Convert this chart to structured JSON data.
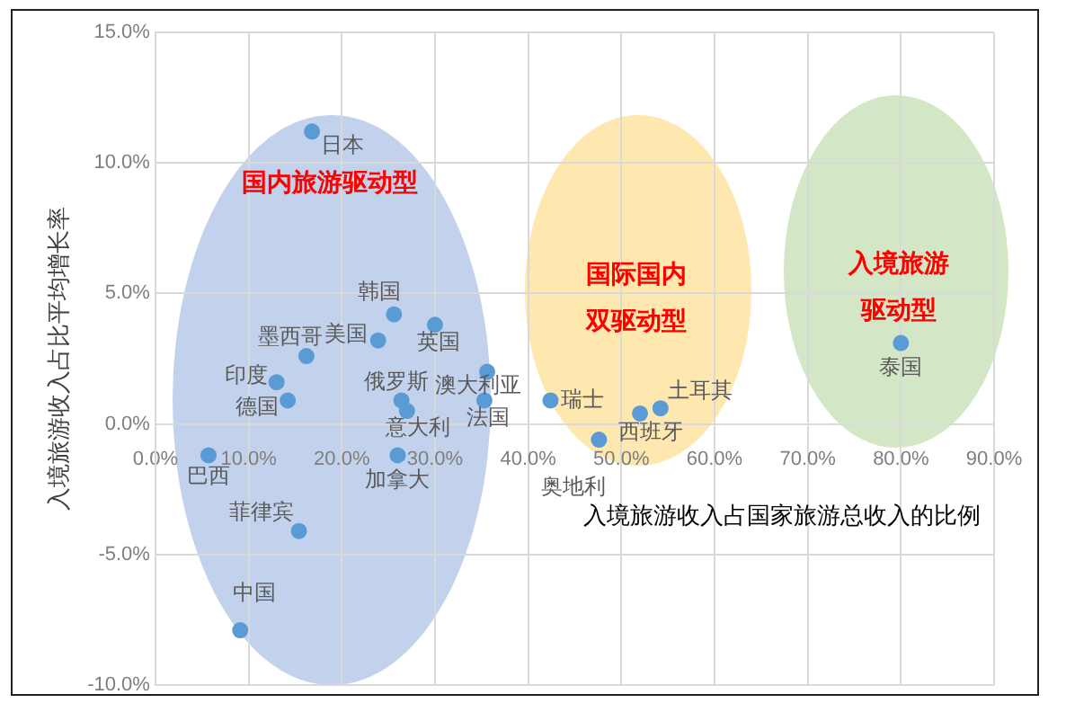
{
  "chart_data": {
    "type": "scatter",
    "ylabel": "入境旅游收入占比平均增长率",
    "xlabel": "入境旅游收入占国家旅游总收入的比例",
    "marker": "circle",
    "grid": true,
    "xlim": [
      0,
      90
    ],
    "ylim": [
      -10,
      15
    ],
    "xticks": [
      {
        "value": 0,
        "label": "0.0%"
      },
      {
        "value": 10,
        "label": "10.0%"
      },
      {
        "value": 20,
        "label": "20.0%"
      },
      {
        "value": 30,
        "label": "30.0%"
      },
      {
        "value": 40,
        "label": "40.0%"
      },
      {
        "value": 50,
        "label": "50.0%"
      },
      {
        "value": 60,
        "label": "60.0%"
      },
      {
        "value": 70,
        "label": "70.0%"
      },
      {
        "value": 80,
        "label": "80.0%"
      },
      {
        "value": 90,
        "label": "90.0%"
      }
    ],
    "yticks": [
      {
        "value": -10,
        "label": "-10.0%"
      },
      {
        "value": -5,
        "label": "-5.0%"
      },
      {
        "value": 0,
        "label": "0.0%"
      },
      {
        "value": 5,
        "label": "5.0%"
      },
      {
        "value": 10,
        "label": "10.0%"
      },
      {
        "value": 15,
        "label": "15.0%"
      }
    ],
    "annotations": [
      "国内旅游驱动型",
      "国际国内双驱动型",
      "入境旅游驱动型"
    ],
    "series": [
      {
        "name": "日本",
        "color": "#5b9bd5",
        "x": [
          16.8
        ],
        "values": [
          11.2
        ]
      },
      {
        "name": "韩国",
        "color": "#5b9bd5",
        "x": [
          25.6
        ],
        "values": [
          4.2
        ]
      },
      {
        "name": "美国",
        "color": "#5b9bd5",
        "x": [
          23.9
        ],
        "values": [
          3.2
        ]
      },
      {
        "name": "英国",
        "color": "#5b9bd5",
        "x": [
          30.0
        ],
        "values": [
          3.8
        ]
      },
      {
        "name": "墨西哥",
        "color": "#5b9bd5",
        "x": [
          16.2
        ],
        "values": [
          2.6
        ]
      },
      {
        "name": "印度",
        "color": "#5b9bd5",
        "x": [
          13.0
        ],
        "values": [
          1.6
        ]
      },
      {
        "name": "德国",
        "color": "#5b9bd5",
        "x": [
          14.2
        ],
        "values": [
          0.9
        ]
      },
      {
        "name": "俄罗斯",
        "color": "#5b9bd5",
        "x": [
          26.4
        ],
        "values": [
          0.9
        ]
      },
      {
        "name": "意大利",
        "color": "#5b9bd5",
        "x": [
          27.0
        ],
        "values": [
          0.5
        ]
      },
      {
        "name": "澳大利亚",
        "color": "#5b9bd5",
        "x": [
          35.6
        ],
        "values": [
          2.0
        ]
      },
      {
        "name": "法国",
        "color": "#5b9bd5",
        "x": [
          35.3
        ],
        "values": [
          0.9
        ]
      },
      {
        "name": "加拿大",
        "color": "#5b9bd5",
        "x": [
          26.0
        ],
        "values": [
          -1.2
        ]
      },
      {
        "name": "巴西",
        "color": "#5b9bd5",
        "x": [
          5.7
        ],
        "values": [
          -1.2
        ]
      },
      {
        "name": "菲律宾",
        "color": "#5b9bd5",
        "x": [
          15.4
        ],
        "values": [
          -4.1
        ]
      },
      {
        "name": "中国",
        "color": "#5b9bd5",
        "x": [
          9.1
        ],
        "values": [
          -7.9
        ]
      },
      {
        "name": "瑞士",
        "color": "#5b9bd5",
        "x": [
          42.4
        ],
        "values": [
          0.9
        ]
      },
      {
        "name": "西班牙",
        "color": "#5b9bd5",
        "x": [
          52.0
        ],
        "values": [
          0.4
        ]
      },
      {
        "name": "土耳其",
        "color": "#5b9bd5",
        "x": [
          54.2
        ],
        "values": [
          0.6
        ]
      },
      {
        "name": "奥地利",
        "color": "#5b9bd5",
        "x": [
          47.6
        ],
        "values": [
          -0.6
        ]
      },
      {
        "name": "泰国",
        "color": "#5b9bd5",
        "x": [
          80.0
        ],
        "values": [
          3.1
        ]
      }
    ]
  }
}
